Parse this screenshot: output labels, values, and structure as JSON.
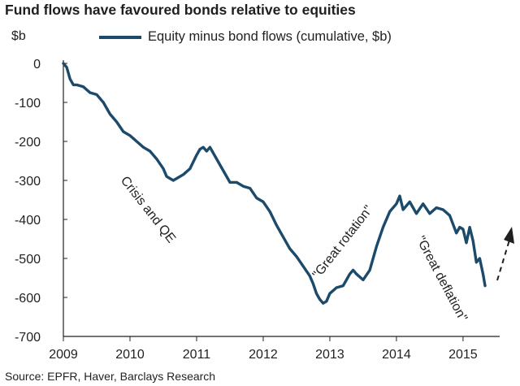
{
  "title": "Fund flows have favoured bonds relative to equities",
  "source": "Source: EPFR, Haver, Barclays Research",
  "chart_data": {
    "type": "line",
    "ylabel": "$b",
    "xlabel": "",
    "ylim": [
      -700,
      0
    ],
    "yticks": [
      0,
      -100,
      -200,
      -300,
      -400,
      -500,
      -600,
      -700
    ],
    "ytick_labels": [
      "0",
      "-100",
      "-200",
      "-300",
      "-400",
      "-500",
      "-600",
      "-700"
    ],
    "xlim": [
      2009,
      2015.55
    ],
    "xticks": [
      2009,
      2010,
      2011,
      2012,
      2013,
      2014,
      2015
    ],
    "xtick_labels": [
      "2009",
      "2010",
      "2011",
      "2012",
      "2013",
      "2014",
      "2015"
    ],
    "grid": false,
    "legend_position": "top",
    "line_color": "#1b4a6b",
    "series": [
      {
        "name": "Equity minus bond flows (cumulative, $b)",
        "x": [
          2009.0,
          2009.05,
          2009.1,
          2009.15,
          2009.2,
          2009.3,
          2009.4,
          2009.5,
          2009.6,
          2009.7,
          2009.8,
          2009.9,
          2010.0,
          2010.1,
          2010.2,
          2010.3,
          2010.4,
          2010.5,
          2010.55,
          2010.6,
          2010.65,
          2010.7,
          2010.8,
          2010.9,
          2011.0,
          2011.05,
          2011.1,
          2011.15,
          2011.2,
          2011.3,
          2011.4,
          2011.5,
          2011.6,
          2011.7,
          2011.8,
          2011.9,
          2012.0,
          2012.1,
          2012.2,
          2012.3,
          2012.4,
          2012.5,
          2012.6,
          2012.7,
          2012.75,
          2012.8,
          2012.85,
          2012.9,
          2012.95,
          2013.0,
          2013.1,
          2013.2,
          2013.3,
          2013.35,
          2013.4,
          2013.5,
          2013.6,
          2013.7,
          2013.8,
          2013.9,
          2014.0,
          2014.05,
          2014.1,
          2014.2,
          2014.3,
          2014.4,
          2014.5,
          2014.6,
          2014.7,
          2014.8,
          2014.9,
          2014.95,
          2015.0,
          2015.05,
          2015.1,
          2015.15,
          2015.2,
          2015.25,
          2015.3,
          2015.33
        ],
        "values": [
          0,
          -10,
          -40,
          -55,
          -55,
          -60,
          -75,
          -80,
          -100,
          -130,
          -150,
          -175,
          -185,
          -200,
          -215,
          -225,
          -245,
          -270,
          -290,
          -295,
          -300,
          -295,
          -285,
          -270,
          -235,
          -220,
          -215,
          -225,
          -215,
          -245,
          -275,
          -305,
          -305,
          -315,
          -320,
          -345,
          -355,
          -380,
          -415,
          -445,
          -475,
          -495,
          -520,
          -545,
          -565,
          -590,
          -605,
          -615,
          -610,
          -590,
          -575,
          -570,
          -540,
          -530,
          -540,
          -555,
          -530,
          -470,
          -420,
          -380,
          -360,
          -340,
          -375,
          -355,
          -385,
          -360,
          -385,
          -370,
          -375,
          -390,
          -435,
          -420,
          -425,
          -460,
          -420,
          -455,
          -510,
          -500,
          -540,
          -570
        ]
      }
    ],
    "annotations": [
      "Crisis and QE",
      "\"Great rotation\"",
      "\"Great deflation\""
    ]
  }
}
